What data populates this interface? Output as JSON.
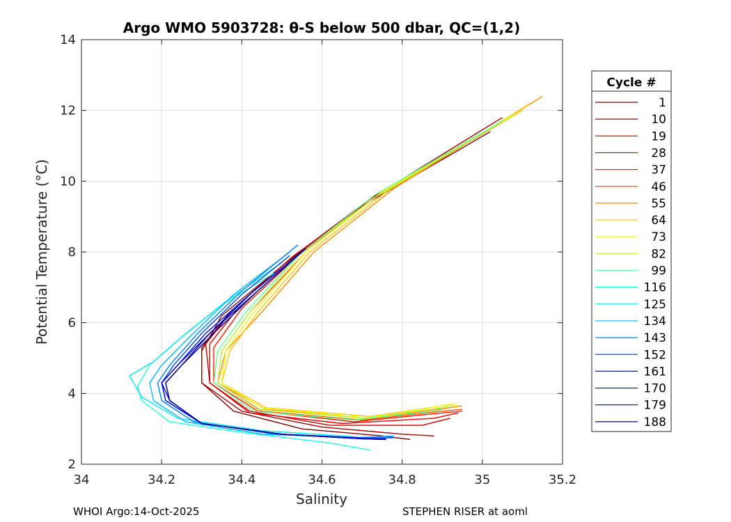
{
  "chart_data": {
    "type": "line",
    "title": "Argo WMO 5903728: θ-S below 500 dbar,  QC=(1,2)",
    "xlabel": "Salinity",
    "ylabel": "Potential Temperature (°C)",
    "xlim": [
      34,
      35.2
    ],
    "ylim": [
      2,
      14
    ],
    "xticks": [
      "34",
      "34.2",
      "34.4",
      "34.6",
      "34.8",
      "35",
      "35.2"
    ],
    "yticks": [
      "2",
      "4",
      "6",
      "8",
      "10",
      "12",
      "14"
    ],
    "grid": true,
    "legend": {
      "title": "Cycle #",
      "placement": "outside-right",
      "entries": [
        {
          "label": "1",
          "color": "#800000"
        },
        {
          "label": "10",
          "color": "#a00000"
        },
        {
          "label": "19",
          "color": "#c40000"
        },
        {
          "label": "28",
          "color": "#e00000"
        },
        {
          "label": "37",
          "color": "#ff1a00"
        },
        {
          "label": "46",
          "color": "#ff5000"
        },
        {
          "label": "55",
          "color": "#ff8c00"
        },
        {
          "label": "64",
          "color": "#ffc800"
        },
        {
          "label": "73",
          "color": "#f2ff0d"
        },
        {
          "label": "82",
          "color": "#b4ff4b"
        },
        {
          "label": "99",
          "color": "#6aff95"
        },
        {
          "label": "116",
          "color": "#20ffdf"
        },
        {
          "label": "125",
          "color": "#00e8ff"
        },
        {
          "label": "134",
          "color": "#00b8ff"
        },
        {
          "label": "143",
          "color": "#0080ff"
        },
        {
          "label": "152",
          "color": "#0048ff"
        },
        {
          "label": "161",
          "color": "#0010ff"
        },
        {
          "label": "170",
          "color": "#0000d8"
        },
        {
          "label": "179",
          "color": "#0000b0"
        },
        {
          "label": "188",
          "color": "#000090"
        }
      ]
    },
    "series": [
      {
        "name": "1",
        "x": [
          35.02,
          34.7,
          34.5,
          34.35,
          34.3,
          34.3,
          34.38,
          34.55,
          34.75,
          34.82
        ],
        "y": [
          11.4,
          9.3,
          7.6,
          6.2,
          5.2,
          4.3,
          3.5,
          3.0,
          2.8,
          2.7
        ]
      },
      {
        "name": "10",
        "x": [
          35.05,
          34.72,
          34.52,
          34.37,
          34.3,
          34.3,
          34.4,
          34.6,
          34.8,
          34.88
        ],
        "y": [
          11.8,
          9.5,
          7.8,
          6.3,
          5.3,
          4.3,
          3.5,
          3.05,
          2.85,
          2.8
        ]
      },
      {
        "name": "19",
        "x": [
          35.1,
          34.74,
          34.53,
          34.38,
          34.31,
          34.32,
          34.42,
          34.62,
          34.85,
          34.92
        ],
        "y": [
          12.0,
          9.6,
          7.9,
          6.4,
          5.4,
          4.3,
          3.5,
          3.1,
          3.1,
          3.3
        ]
      },
      {
        "name": "28",
        "x": [
          35.1,
          34.74,
          34.54,
          34.39,
          34.32,
          34.32,
          34.42,
          34.65,
          34.88,
          34.94
        ],
        "y": [
          12.0,
          9.6,
          7.9,
          6.4,
          5.4,
          4.3,
          3.45,
          3.15,
          3.3,
          3.45
        ]
      },
      {
        "name": "37",
        "x": [
          35.1,
          34.75,
          34.55,
          34.4,
          34.33,
          34.33,
          34.44,
          34.68,
          34.9,
          34.95
        ],
        "y": [
          12.0,
          9.7,
          8.0,
          6.4,
          5.3,
          4.3,
          3.5,
          3.2,
          3.45,
          3.5
        ]
      },
      {
        "name": "46",
        "x": [
          35.1,
          34.75,
          34.56,
          34.42,
          34.35,
          34.34,
          34.45,
          34.7,
          34.9,
          34.95
        ],
        "y": [
          12.0,
          9.7,
          8.0,
          6.3,
          5.2,
          4.3,
          3.5,
          3.25,
          3.5,
          3.55
        ]
      },
      {
        "name": "55",
        "x": [
          35.15,
          34.78,
          34.58,
          34.45,
          34.36,
          34.34,
          34.46,
          34.72,
          34.92,
          34.95
        ],
        "y": [
          12.4,
          9.8,
          8.0,
          6.3,
          5.2,
          4.3,
          3.55,
          3.3,
          3.6,
          3.65
        ]
      },
      {
        "name": "64",
        "x": [
          35.12,
          34.76,
          34.57,
          34.44,
          34.37,
          34.35,
          34.46,
          34.72,
          34.9,
          34.93
        ],
        "y": [
          12.2,
          9.7,
          8.0,
          6.3,
          5.2,
          4.3,
          3.6,
          3.35,
          3.65,
          3.7
        ]
      },
      {
        "name": "73",
        "x": [
          35.1,
          34.75,
          34.56,
          34.43,
          34.36,
          34.35,
          34.45,
          34.72,
          34.92,
          34.94
        ],
        "y": [
          12.0,
          9.7,
          8.0,
          6.3,
          5.2,
          4.3,
          3.6,
          3.3,
          3.7,
          3.65
        ]
      },
      {
        "name": "82",
        "x": [
          35.08,
          34.74,
          34.55,
          34.42,
          34.35,
          34.34,
          34.44,
          34.7,
          34.9,
          34.93
        ],
        "y": [
          11.9,
          9.6,
          8.0,
          6.3,
          5.2,
          4.3,
          3.55,
          3.3,
          3.6,
          3.65
        ]
      },
      {
        "name": "99",
        "x": [
          35.05,
          34.73,
          34.54,
          34.41,
          34.34,
          34.33,
          34.43,
          34.68,
          34.88,
          34.9
        ],
        "y": [
          11.7,
          9.6,
          7.9,
          6.3,
          5.2,
          4.3,
          3.5,
          3.25,
          3.5,
          3.55
        ]
      },
      {
        "name": "116",
        "x": [
          34.48,
          34.35,
          34.24,
          34.17,
          34.14,
          34.15,
          34.22,
          34.4,
          34.62,
          34.72
        ],
        "y": [
          7.4,
          6.5,
          5.5,
          4.8,
          4.2,
          3.8,
          3.2,
          2.9,
          2.6,
          2.4
        ]
      },
      {
        "name": "125",
        "x": [
          34.5,
          34.36,
          34.25,
          34.18,
          34.12,
          34.15,
          34.24,
          34.45,
          34.65,
          34.75
        ],
        "y": [
          7.7,
          6.6,
          5.6,
          4.9,
          4.5,
          3.9,
          3.3,
          2.95,
          2.8,
          2.7
        ]
      },
      {
        "name": "134",
        "x": [
          34.52,
          34.38,
          34.27,
          34.2,
          34.17,
          34.18,
          34.26,
          34.45,
          34.68,
          34.78
        ],
        "y": [
          8.0,
          6.8,
          5.6,
          4.8,
          4.3,
          3.8,
          3.2,
          2.85,
          2.75,
          2.8
        ]
      },
      {
        "name": "143",
        "x": [
          34.54,
          34.4,
          34.29,
          34.22,
          34.19,
          34.2,
          34.28,
          34.48,
          34.7,
          34.78
        ],
        "y": [
          8.2,
          6.9,
          5.7,
          4.8,
          4.3,
          3.8,
          3.2,
          2.85,
          2.75,
          2.75
        ]
      },
      {
        "name": "152",
        "x": [
          34.52,
          34.4,
          34.3,
          34.23,
          34.2,
          34.21,
          34.3,
          34.5,
          34.7,
          34.78
        ],
        "y": [
          7.9,
          6.8,
          5.7,
          4.8,
          4.3,
          3.8,
          3.15,
          2.85,
          2.75,
          2.75
        ]
      },
      {
        "name": "161",
        "x": [
          34.55,
          34.42,
          34.31,
          34.24,
          34.2,
          34.21,
          34.3,
          34.5,
          34.7,
          34.76
        ],
        "y": [
          8.0,
          6.8,
          5.7,
          4.8,
          4.3,
          3.8,
          3.15,
          2.85,
          2.72,
          2.72
        ]
      },
      {
        "name": "170",
        "x": [
          34.56,
          34.43,
          34.32,
          34.24,
          34.2,
          34.22,
          34.3,
          34.5,
          34.7,
          34.76
        ],
        "y": [
          8.1,
          6.9,
          5.7,
          4.8,
          4.3,
          3.8,
          3.15,
          2.85,
          2.72,
          2.7
        ]
      },
      {
        "name": "179",
        "x": [
          34.55,
          34.43,
          34.32,
          34.25,
          34.21,
          34.22,
          34.3,
          34.5,
          34.7,
          34.76
        ],
        "y": [
          8.0,
          6.8,
          5.7,
          4.8,
          4.3,
          3.8,
          3.15,
          2.85,
          2.72,
          2.7
        ]
      },
      {
        "name": "188",
        "x": [
          34.56,
          34.44,
          34.33,
          34.25,
          34.21,
          34.22,
          34.3,
          34.5,
          34.7,
          34.76
        ],
        "y": [
          8.1,
          6.9,
          5.7,
          4.8,
          4.3,
          3.8,
          3.15,
          2.85,
          2.72,
          2.7
        ]
      }
    ]
  },
  "footer": {
    "left": "WHOI Argo:14-Oct-2025",
    "right": "STEPHEN RISER at aoml"
  }
}
